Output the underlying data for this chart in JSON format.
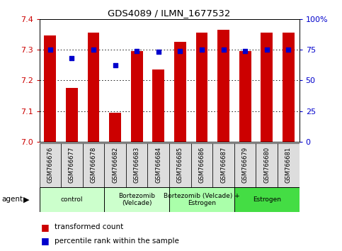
{
  "title": "GDS4089 / ILMN_1677532",
  "samples": [
    "GSM766676",
    "GSM766677",
    "GSM766678",
    "GSM766682",
    "GSM766683",
    "GSM766684",
    "GSM766685",
    "GSM766686",
    "GSM766687",
    "GSM766679",
    "GSM766680",
    "GSM766681"
  ],
  "bar_values": [
    7.345,
    7.175,
    7.355,
    7.095,
    7.295,
    7.235,
    7.325,
    7.355,
    7.365,
    7.295,
    7.355,
    7.355
  ],
  "percentile_values": [
    75,
    68,
    75,
    62,
    74,
    73,
    74,
    75,
    75,
    74,
    75,
    75
  ],
  "ylim_left": [
    7.0,
    7.4
  ],
  "ylim_right": [
    0,
    100
  ],
  "yticks_left": [
    7.0,
    7.1,
    7.2,
    7.3,
    7.4
  ],
  "yticks_right": [
    0,
    25,
    50,
    75,
    100
  ],
  "bar_color": "#cc0000",
  "dot_color": "#0000cc",
  "background_color": "#ffffff",
  "grid_color": "#000000",
  "agent_groups": [
    {
      "label": "control",
      "start": 0,
      "end": 3,
      "color": "#ccffcc"
    },
    {
      "label": "Bortezomib\n(Velcade)",
      "start": 3,
      "end": 6,
      "color": "#ccffcc"
    },
    {
      "label": "Bortezomib (Velcade) +\nEstrogen",
      "start": 6,
      "end": 9,
      "color": "#aaffaa"
    },
    {
      "label": "Estrogen",
      "start": 9,
      "end": 12,
      "color": "#44dd44"
    }
  ],
  "legend_items": [
    {
      "label": "transformed count",
      "color": "#cc0000"
    },
    {
      "label": "percentile rank within the sample",
      "color": "#0000cc"
    }
  ],
  "tick_label_color": "#cc0000",
  "right_tick_color": "#0000cc",
  "bar_bottom": 7.0,
  "bar_width": 0.55
}
